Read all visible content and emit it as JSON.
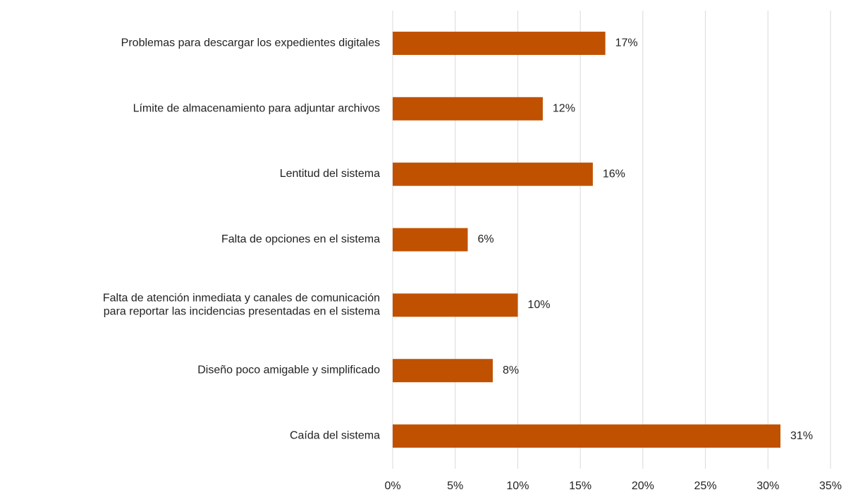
{
  "chart_data": {
    "type": "barh",
    "categories": [
      "Problemas para descargar los expedientes digitales",
      "Límite de almacenamiento para adjuntar archivos",
      "Lentitud del sistema",
      "Falta de opciones en el sistema",
      "Falta de atención inmediata y canales de comunicación\npara reportar las incidencias presentadas en el sistema",
      "Diseño poco amigable y simplificado",
      "Caída del sistema"
    ],
    "values": [
      17,
      12,
      16,
      6,
      10,
      8,
      31
    ],
    "value_labels": [
      "17%",
      "12%",
      "16%",
      "6%",
      "10%",
      "8%",
      "31%"
    ],
    "color": "#c05100",
    "xlim": [
      0,
      35
    ],
    "xticks": [
      {
        "value": 0,
        "label": "0%"
      },
      {
        "value": 5,
        "label": "5%"
      },
      {
        "value": 10,
        "label": "10%"
      },
      {
        "value": 15,
        "label": "15%"
      },
      {
        "value": 20,
        "label": "20%"
      },
      {
        "value": 25,
        "label": "25%"
      },
      {
        "value": 30,
        "label": "30%"
      },
      {
        "value": 35,
        "label": "35%"
      }
    ],
    "grid": true
  }
}
